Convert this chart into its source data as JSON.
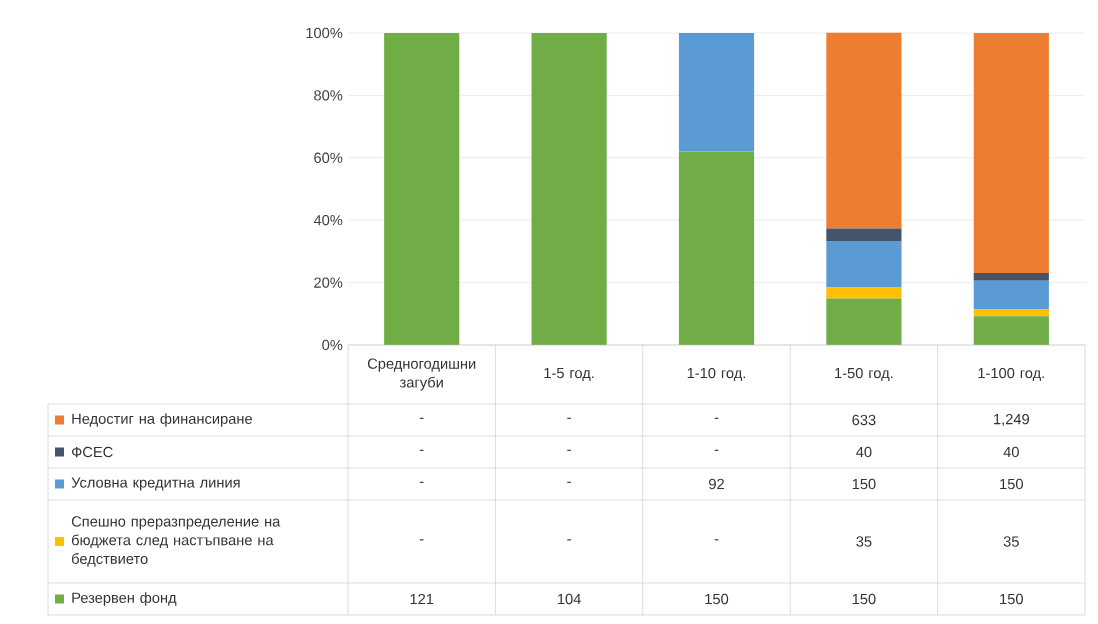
{
  "chart_data": [
    {
      "type": "bar",
      "stacked": true,
      "categories": [
        "Средногодишни загуби",
        "1-5 год.",
        "1-10 год.",
        "1-50 год.",
        "1-100 год."
      ],
      "series": [
        {
          "color": "#70ad47",
          "values": [
            100,
            100,
            62.0,
            14.9,
            9.2
          ]
        },
        {
          "color": "#ffc000",
          "values": [
            null,
            null,
            null,
            3.5,
            2.2
          ]
        },
        {
          "color": "#5b9bd5",
          "values": [
            null,
            null,
            38.0,
            14.9,
            9.2
          ]
        },
        {
          "color": "#44546a",
          "values": [
            null,
            null,
            null,
            4.0,
            2.5
          ]
        },
        {
          "color": "#ed7d31",
          "values": [
            null,
            null,
            null,
            62.8,
            76.9
          ]
        }
      ],
      "ylim": [
        0,
        100
      ],
      "yticks": [
        {
          "value": 0,
          "label": "0%"
        },
        {
          "value": 20,
          "label": "20%"
        },
        {
          "value": 40,
          "label": "40%"
        },
        {
          "value": 60,
          "label": "60%"
        },
        {
          "value": 80,
          "label": "80%"
        },
        {
          "value": 100,
          "label": "100%"
        }
      ],
      "grid": "y"
    },
    {
      "type": "other",
      "legend": "bottom",
      "series": [
        {
          "name": "Резервен фонд",
          "color": "#70ad47"
        },
        {
          "name": "Спешно преразпределение на бюджета след настъпване на бедствието",
          "color": "#ffc000"
        },
        {
          "name": "Условна кредитна линия",
          "color": "#5b9bd5"
        },
        {
          "name": "ФСЕС",
          "color": "#44546a"
        },
        {
          "name": "Недостиг на финансиране",
          "color": "#ed7d31"
        }
      ],
      "annotations": [
        "-",
        "-",
        "-",
        "633",
        "1,249",
        "-",
        "-",
        "-",
        "40",
        "40",
        "-",
        "-",
        "92",
        "150",
        "150",
        "-",
        "-",
        "-",
        "35",
        "35",
        "121",
        "104",
        "150",
        "150",
        "150"
      ]
    }
  ]
}
